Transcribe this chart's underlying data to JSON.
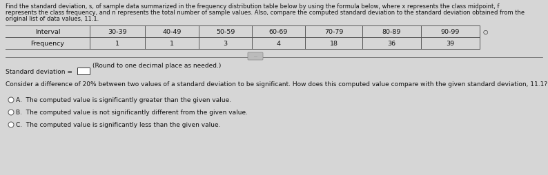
{
  "title_line1": "Find the standard deviation, s, of sample data summarized in the frequency distribution table below by using the formula below, where x represents the class midpoint, f",
  "title_line2": "represents the class frequency, and n represents the total number of sample values. Also, compare the computed standard deviation to the standard deviation obtained from the",
  "title_line3": "original list of data values, 11.1.",
  "intervals": [
    "Interval",
    "30-39",
    "40-49",
    "50-59",
    "60-69",
    "70-79",
    "80-89",
    "90-99"
  ],
  "frequencies": [
    "Frequency",
    "1",
    "1",
    "3",
    "4",
    "18",
    "36",
    "39"
  ],
  "std_label": "Standard deviation =",
  "std_note": "(Round to one decimal place as needed.)",
  "compare_text": "Consider a difference of 20% between two values of a standard deviation to be significant. How does this computed value compare with the given standard deviation, 11.1?",
  "option_a": "A.  The computed value is significantly greater than the given value.",
  "option_b": "B.  The computed value is not significantly different from the given value.",
  "option_c": "C.  The computed value is significantly less than the given value.",
  "bg_color": "#d6d6d6",
  "text_color": "#111111",
  "table_line_color": "#555555",
  "font_size_title": 6.0,
  "font_size_table": 6.8,
  "font_size_body": 6.5
}
